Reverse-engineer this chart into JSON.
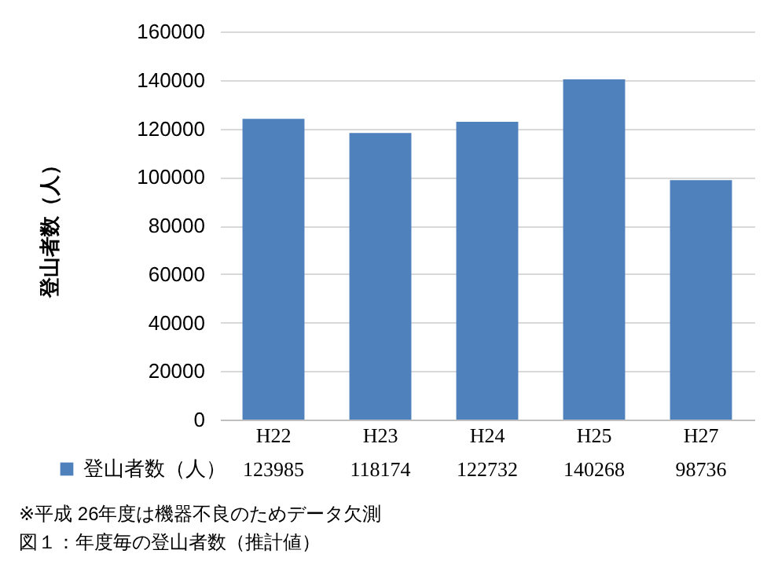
{
  "chart_data": {
    "type": "bar",
    "ylabel": "登山者数（人）",
    "categories": [
      "H22",
      "H23",
      "H24",
      "H25",
      "H27"
    ],
    "series": [
      {
        "name": "登山者数（人）",
        "color": "#4f81bd",
        "values": [
          123985,
          118174,
          122732,
          140268,
          98736
        ]
      }
    ],
    "ylim": [
      0,
      160000
    ],
    "yticks": [
      0,
      20000,
      40000,
      60000,
      80000,
      100000,
      120000,
      140000,
      160000
    ],
    "grid": "y",
    "legend": "bottom",
    "data_labels": true,
    "annotations": [
      "※平成 26年度は機器不良のためデータ欠測",
      "図１：年度毎の登山者数（推計値）"
    ]
  }
}
